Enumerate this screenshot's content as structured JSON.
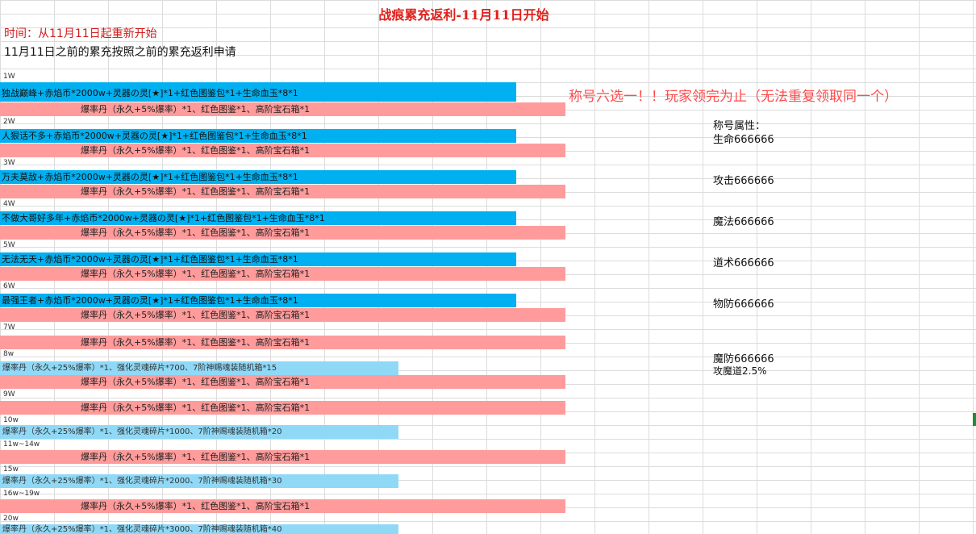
{
  "sheet": {
    "title": "战痕累充返利-11月11日开始",
    "time_line": "时间：从11月11日起重新开始",
    "note_line": "11月11日之前的累充按照之前的累充返利申请",
    "announcement": "称号六选一！！玩家领完为止（无法重复领取同一个）",
    "attributes": {
      "header": "称号属性：",
      "hp": "生命666666",
      "atk": "攻击666666",
      "magic": "魔法666666",
      "tao": "道术666666",
      "pdef": "物防666666",
      "mdef": "魔防666666",
      "atkpct": "攻魔道2.5%"
    },
    "tiers": [
      {
        "label": "1W",
        "title_row": "独战巅峰+赤焰币*2000w+灵器の灵[★]*1+红色图鉴包*1+生命血玉*8*1",
        "reward_row": "爆率丹（永久+5%爆率）*1、红色图鉴*1、高阶宝石箱*1"
      },
      {
        "label": "2W",
        "title_row": "人狠话不多+赤焰币*2000w+灵器の灵[★]*1+红色图鉴包*1+生命血玉*8*1",
        "reward_row": "爆率丹（永久+5%爆率）*1、红色图鉴*1、高阶宝石箱*1"
      },
      {
        "label": "3W",
        "title_row": "万夫莫敌+赤焰币*2000w+灵器の灵[★]*1+红色图鉴包*1+生命血玉*8*1",
        "reward_row": "爆率丹（永久+5%爆率）*1、红色图鉴*1、高阶宝石箱*1"
      },
      {
        "label": "4W",
        "title_row": "不做大哥好多年+赤焰币*2000w+灵器の灵[★]*1+红色图鉴包*1+生命血玉*8*1",
        "reward_row": "爆率丹（永久+5%爆率）*1、红色图鉴*1、高阶宝石箱*1"
      },
      {
        "label": "5W",
        "title_row": "无法无天+赤焰币*2000w+灵器の灵[★]*1+红色图鉴包*1+生命血玉*8*1",
        "reward_row": "爆率丹（永久+5%爆率）*1、红色图鉴*1、高阶宝石箱*1"
      },
      {
        "label": "6W",
        "title_row": "最强王者+赤焰币*2000w+灵器の灵[★]*1+红色图鉴包*1+生命血玉*8*1",
        "reward_row": "爆率丹（永久+5%爆率）*1、红色图鉴*1、高阶宝石箱*1"
      },
      {
        "label": "7W",
        "reward_row": "爆率丹（永久+5%爆率）*1、红色图鉴*1、高阶宝石箱*1"
      },
      {
        "label": "8w",
        "extra_row": "爆率丹（永久+25%爆率）*1、强化灵魂碎片*700、7阶神赐魂装随机箱*15",
        "reward_row": "爆率丹（永久+5%爆率）*1、红色图鉴*1、高阶宝石箱*1"
      },
      {
        "label": "9W",
        "reward_row": "爆率丹（永久+5%爆率）*1、红色图鉴*1、高阶宝石箱*1"
      },
      {
        "label": "10w",
        "extra_row": "爆率丹（永久+25%爆率）*1、强化灵魂碎片*1000、7阶神赐魂装随机箱*20"
      },
      {
        "label": "11w~14w",
        "reward_row": "爆率丹（永久+5%爆率）*1、红色图鉴*1、高阶宝石箱*1"
      },
      {
        "label": "15w",
        "extra_row": "爆率丹（永久+25%爆率）*1、强化灵魂碎片*2000、7阶神赐魂装随机箱*30"
      },
      {
        "label": "16w~19w",
        "reward_row": "爆率丹（永久+5%爆率）*1、红色图鉴*1、高阶宝石箱*1"
      },
      {
        "label": "20w",
        "extra_row": "爆率丹（永久+25%爆率）*1、强化灵魂碎片*3000、7阶神赐魂装随机箱*40"
      }
    ]
  }
}
